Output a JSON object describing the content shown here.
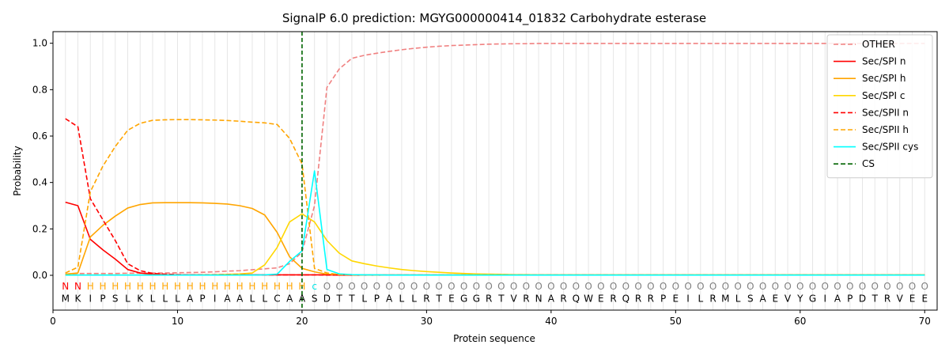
{
  "chart_data": {
    "type": "line",
    "title": "SignalP 6.0 prediction: MGYG000000414_01832 Carbohydrate esterase",
    "xlabel": "Protein sequence",
    "ylabel": "Probability",
    "xlim": [
      0,
      71
    ],
    "ylim": [
      -0.15,
      1.05
    ],
    "xticks": [
      0,
      10,
      20,
      30,
      40,
      50,
      60,
      70
    ],
    "yticks": [
      0.0,
      0.2,
      0.4,
      0.6,
      0.8,
      1.0
    ],
    "grid": "vertical lines at each residue position",
    "legend_position": "top-right",
    "sequence": [
      "M",
      "K",
      "I",
      "P",
      "S",
      "L",
      "K",
      "L",
      "L",
      "L",
      "A",
      "P",
      "I",
      "A",
      "A",
      "L",
      "L",
      "C",
      "A",
      "A",
      "S",
      "D",
      "T",
      "T",
      "L",
      "P",
      "A",
      "L",
      "L",
      "R",
      "T",
      "E",
      "G",
      "G",
      "R",
      "T",
      "V",
      "R",
      "N",
      "A",
      "R",
      "Q",
      "W",
      "E",
      "R",
      "Q",
      "R",
      "R",
      "P",
      "E",
      "I",
      "L",
      "R",
      "M",
      "L",
      "S",
      "A",
      "E",
      "V",
      "Y",
      "G",
      "I",
      "A",
      "P",
      "D",
      "T",
      "R",
      "V",
      "E",
      "E"
    ],
    "labels": [
      "N",
      "N",
      "H",
      "H",
      "H",
      "H",
      "H",
      "H",
      "H",
      "H",
      "H",
      "H",
      "H",
      "H",
      "H",
      "H",
      "H",
      "H",
      "H",
      "H",
      "c",
      "O",
      "O",
      "O",
      "O",
      "O",
      "O",
      "O",
      "O",
      "O",
      "O",
      "O",
      "O",
      "O",
      "O",
      "O",
      "O",
      "O",
      "O",
      "O",
      "O",
      "O",
      "O",
      "O",
      "O",
      "O",
      "O",
      "O",
      "O",
      "O",
      "O",
      "O",
      "O",
      "O",
      "O",
      "O",
      "O",
      "O",
      "O",
      "O",
      "O",
      "O",
      "O",
      "O",
      "O",
      "O",
      "O",
      "O",
      "O",
      "O"
    ],
    "label_colors": {
      "N": "#ff0000",
      "H": "#ffa500",
      "c": "#00e5e5",
      "O": "#808080"
    },
    "cs_position": 20,
    "x": [
      1,
      2,
      3,
      4,
      5,
      6,
      7,
      8,
      9,
      10,
      11,
      12,
      13,
      14,
      15,
      16,
      17,
      18,
      19,
      20,
      21,
      22,
      23,
      24,
      25,
      26,
      27,
      28,
      29,
      30,
      31,
      32,
      33,
      34,
      35,
      36,
      37,
      38,
      39,
      40,
      41,
      42,
      43,
      44,
      45,
      46,
      47,
      48,
      49,
      50,
      51,
      52,
      53,
      54,
      55,
      56,
      57,
      58,
      59,
      60,
      61,
      62,
      63,
      64,
      65,
      66,
      67,
      68,
      69,
      70
    ],
    "series": [
      {
        "name": "OTHER",
        "color": "#f08080",
        "dash": true,
        "values": [
          0.005,
          0.008,
          0.008,
          0.008,
          0.008,
          0.009,
          0.009,
          0.01,
          0.01,
          0.011,
          0.012,
          0.013,
          0.015,
          0.018,
          0.02,
          0.024,
          0.028,
          0.032,
          0.05,
          0.1,
          0.3,
          0.81,
          0.89,
          0.935,
          0.948,
          0.957,
          0.965,
          0.972,
          0.978,
          0.983,
          0.987,
          0.99,
          0.992,
          0.994,
          0.996,
          0.997,
          0.998,
          0.998,
          0.999,
          0.999,
          0.999,
          0.999,
          0.999,
          0.999,
          0.999,
          0.999,
          0.999,
          0.999,
          0.999,
          0.999,
          0.999,
          0.999,
          0.999,
          0.999,
          0.999,
          0.999,
          0.999,
          0.999,
          0.999,
          0.999,
          0.999,
          0.999,
          0.999,
          0.999,
          0.999,
          0.999,
          0.999,
          0.999,
          0.999,
          0.999
        ]
      },
      {
        "name": "Sec/SPI n",
        "color": "#ff0000",
        "dash": false,
        "values": [
          0.315,
          0.3,
          0.155,
          0.11,
          0.07,
          0.025,
          0.01,
          0.005,
          0.003,
          0.002,
          0.002,
          0.002,
          0.002,
          0.002,
          0.002,
          0.002,
          0.002,
          0.002,
          0.002,
          0.002,
          0.002,
          0.002,
          0.001,
          0.001,
          0.001,
          0.001,
          0.001,
          0.001,
          0.001,
          0.001,
          0.001,
          0.001,
          0.001,
          0.001,
          0.001,
          0.001,
          0.001,
          0.001,
          0.001,
          0.001,
          0.001,
          0.001,
          0.001,
          0.001,
          0.001,
          0.001,
          0.001,
          0.001,
          0.001,
          0.001,
          0.001,
          0.001,
          0.001,
          0.001,
          0.001,
          0.001,
          0.001,
          0.001,
          0.001,
          0.001,
          0.001,
          0.001,
          0.001,
          0.001,
          0.001,
          0.001,
          0.001,
          0.001,
          0.001,
          0.001
        ]
      },
      {
        "name": "Sec/SPI h",
        "color": "#ffa500",
        "dash": false,
        "values": [
          0.005,
          0.01,
          0.165,
          0.215,
          0.255,
          0.29,
          0.305,
          0.312,
          0.313,
          0.313,
          0.313,
          0.312,
          0.31,
          0.307,
          0.3,
          0.288,
          0.26,
          0.185,
          0.08,
          0.03,
          0.015,
          0.005,
          0.003,
          0.002,
          0.002,
          0.001,
          0.001,
          0.001,
          0.001,
          0.001,
          0.001,
          0.001,
          0.001,
          0.001,
          0.001,
          0.001,
          0.001,
          0.001,
          0.001,
          0.001,
          0.001,
          0.001,
          0.001,
          0.001,
          0.001,
          0.001,
          0.001,
          0.001,
          0.001,
          0.001,
          0.001,
          0.001,
          0.001,
          0.001,
          0.001,
          0.001,
          0.001,
          0.001,
          0.001,
          0.001,
          0.001,
          0.001,
          0.001,
          0.001,
          0.001,
          0.001,
          0.001,
          0.001,
          0.001,
          0.001
        ]
      },
      {
        "name": "Sec/SPI c",
        "color": "#ffd700",
        "dash": false,
        "values": [
          0.001,
          0.001,
          0.001,
          0.001,
          0.001,
          0.001,
          0.001,
          0.001,
          0.001,
          0.001,
          0.001,
          0.002,
          0.003,
          0.004,
          0.006,
          0.01,
          0.045,
          0.12,
          0.23,
          0.265,
          0.23,
          0.15,
          0.095,
          0.062,
          0.05,
          0.04,
          0.032,
          0.025,
          0.02,
          0.016,
          0.013,
          0.01,
          0.008,
          0.006,
          0.005,
          0.004,
          0.003,
          0.003,
          0.002,
          0.002,
          0.002,
          0.002,
          0.002,
          0.002,
          0.002,
          0.002,
          0.002,
          0.002,
          0.002,
          0.002,
          0.002,
          0.002,
          0.002,
          0.002,
          0.002,
          0.002,
          0.002,
          0.002,
          0.002,
          0.002,
          0.002,
          0.002,
          0.002,
          0.002,
          0.002,
          0.002,
          0.002,
          0.002,
          0.002,
          0.002
        ]
      },
      {
        "name": "Sec/SPII n",
        "color": "#ff0000",
        "dash": true,
        "values": [
          0.675,
          0.64,
          0.33,
          0.24,
          0.15,
          0.05,
          0.02,
          0.008,
          0.005,
          0.003,
          0.002,
          0.002,
          0.002,
          0.002,
          0.002,
          0.002,
          0.002,
          0.002,
          0.002,
          0.002,
          0.002,
          0.001,
          0.001,
          0.001,
          0.001,
          0.001,
          0.001,
          0.001,
          0.001,
          0.001,
          0.001,
          0.001,
          0.001,
          0.001,
          0.001,
          0.001,
          0.001,
          0.001,
          0.001,
          0.001,
          0.001,
          0.001,
          0.001,
          0.001,
          0.001,
          0.001,
          0.001,
          0.001,
          0.001,
          0.001,
          0.001,
          0.001,
          0.001,
          0.001,
          0.001,
          0.001,
          0.001,
          0.001,
          0.001,
          0.001,
          0.001,
          0.001,
          0.001,
          0.001,
          0.001,
          0.001,
          0.001,
          0.001,
          0.001,
          0.001
        ]
      },
      {
        "name": "Sec/SPII h",
        "color": "#ffa500",
        "dash": true,
        "values": [
          0.01,
          0.035,
          0.36,
          0.47,
          0.555,
          0.625,
          0.655,
          0.668,
          0.67,
          0.671,
          0.671,
          0.67,
          0.669,
          0.667,
          0.664,
          0.66,
          0.657,
          0.65,
          0.59,
          0.48,
          0.03,
          0.01,
          0.003,
          0.002,
          0.001,
          0.001,
          0.001,
          0.001,
          0.001,
          0.001,
          0.001,
          0.001,
          0.001,
          0.001,
          0.001,
          0.001,
          0.001,
          0.001,
          0.001,
          0.001,
          0.001,
          0.001,
          0.001,
          0.001,
          0.001,
          0.001,
          0.001,
          0.001,
          0.001,
          0.001,
          0.001,
          0.001,
          0.001,
          0.001,
          0.001,
          0.001,
          0.001,
          0.001,
          0.001,
          0.001,
          0.001,
          0.001,
          0.001,
          0.001,
          0.001,
          0.001,
          0.001,
          0.001,
          0.001,
          0.001
        ]
      },
      {
        "name": "Sec/SPII cys",
        "color": "#00ffff",
        "dash": false,
        "values": [
          0.001,
          0.001,
          0.001,
          0.001,
          0.001,
          0.001,
          0.001,
          0.001,
          0.001,
          0.001,
          0.001,
          0.001,
          0.001,
          0.001,
          0.001,
          0.001,
          0.002,
          0.005,
          0.06,
          0.105,
          0.45,
          0.025,
          0.006,
          0.003,
          0.002,
          0.002,
          0.001,
          0.001,
          0.001,
          0.001,
          0.001,
          0.001,
          0.001,
          0.001,
          0.001,
          0.001,
          0.001,
          0.001,
          0.001,
          0.001,
          0.001,
          0.001,
          0.001,
          0.001,
          0.001,
          0.001,
          0.001,
          0.001,
          0.001,
          0.001,
          0.001,
          0.001,
          0.001,
          0.001,
          0.001,
          0.001,
          0.001,
          0.001,
          0.001,
          0.001,
          0.001,
          0.001,
          0.001,
          0.001,
          0.001,
          0.001,
          0.001,
          0.001,
          0.001,
          0.001
        ]
      }
    ],
    "cs_legend": {
      "name": "CS",
      "color": "#006400"
    }
  }
}
